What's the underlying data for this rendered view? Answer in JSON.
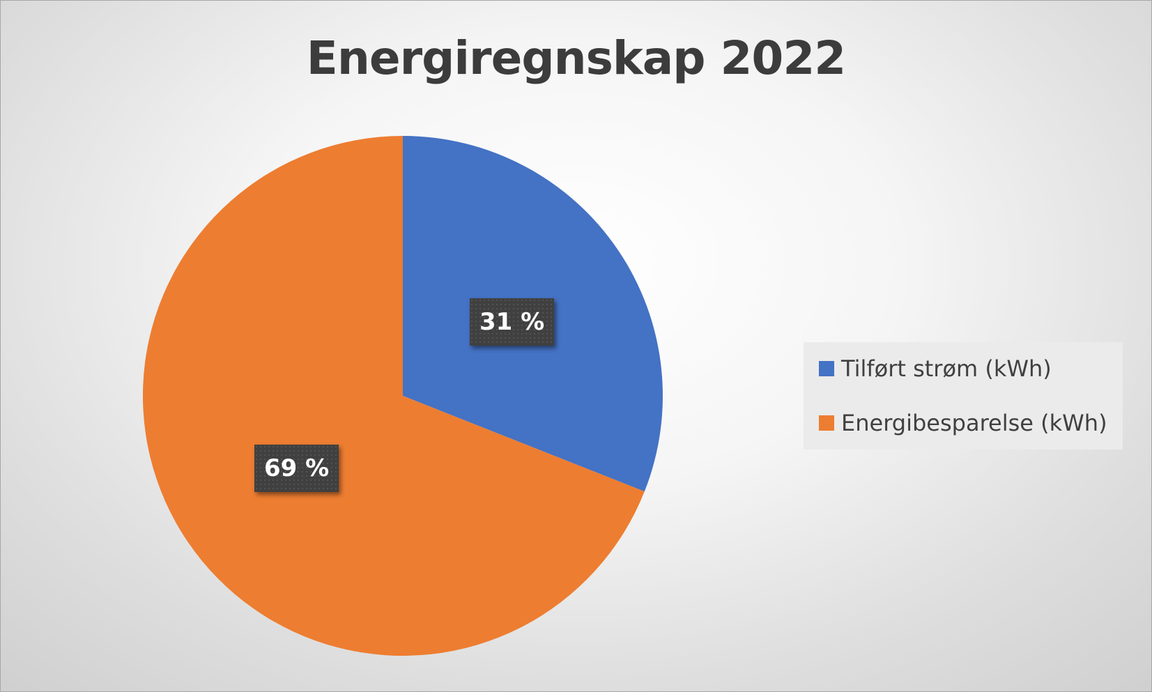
{
  "chart_data": {
    "type": "pie",
    "title": "Energiregnskap 2022",
    "categories": [
      "Tilført strøm (kWh)",
      "Energibesparelse (kWh)"
    ],
    "values": [
      31,
      69
    ],
    "value_unit": "%",
    "data_labels": [
      "31 %",
      "69 %"
    ],
    "colors": [
      "#4472c4",
      "#ed7d31"
    ],
    "legend_position": "right",
    "data_label_style": "dark boxed, white bold text"
  }
}
